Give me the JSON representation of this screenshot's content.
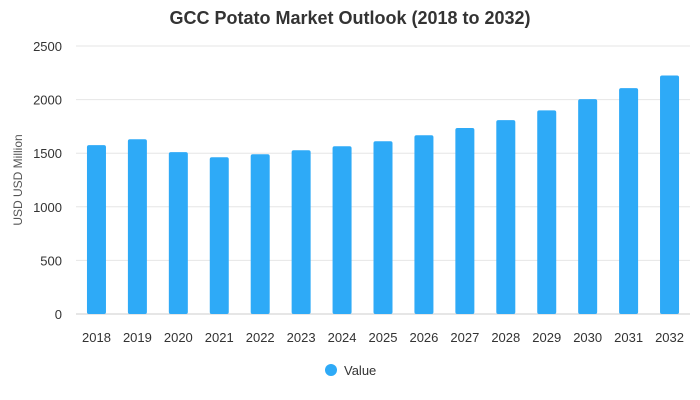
{
  "chart_data": {
    "type": "bar",
    "title": "GCC Potato Market Outlook (2018 to 2032)",
    "xlabel": "",
    "ylabel": "USD USD Million",
    "categories": [
      "2018",
      "2019",
      "2020",
      "2021",
      "2022",
      "2023",
      "2024",
      "2025",
      "2026",
      "2027",
      "2028",
      "2029",
      "2030",
      "2031",
      "2032"
    ],
    "series": [
      {
        "name": "Value",
        "values": [
          1575,
          1630,
          1510,
          1462,
          1490,
          1527,
          1565,
          1612,
          1668,
          1735,
          1808,
          1900,
          2005,
          2107,
          2225
        ]
      }
    ],
    "ylim": [
      0,
      2500
    ],
    "yticks": [
      0,
      500,
      1000,
      1500,
      2000,
      2500
    ],
    "grid": true,
    "legend": "bottom-center",
    "bar_color": "#2eaaf7"
  }
}
